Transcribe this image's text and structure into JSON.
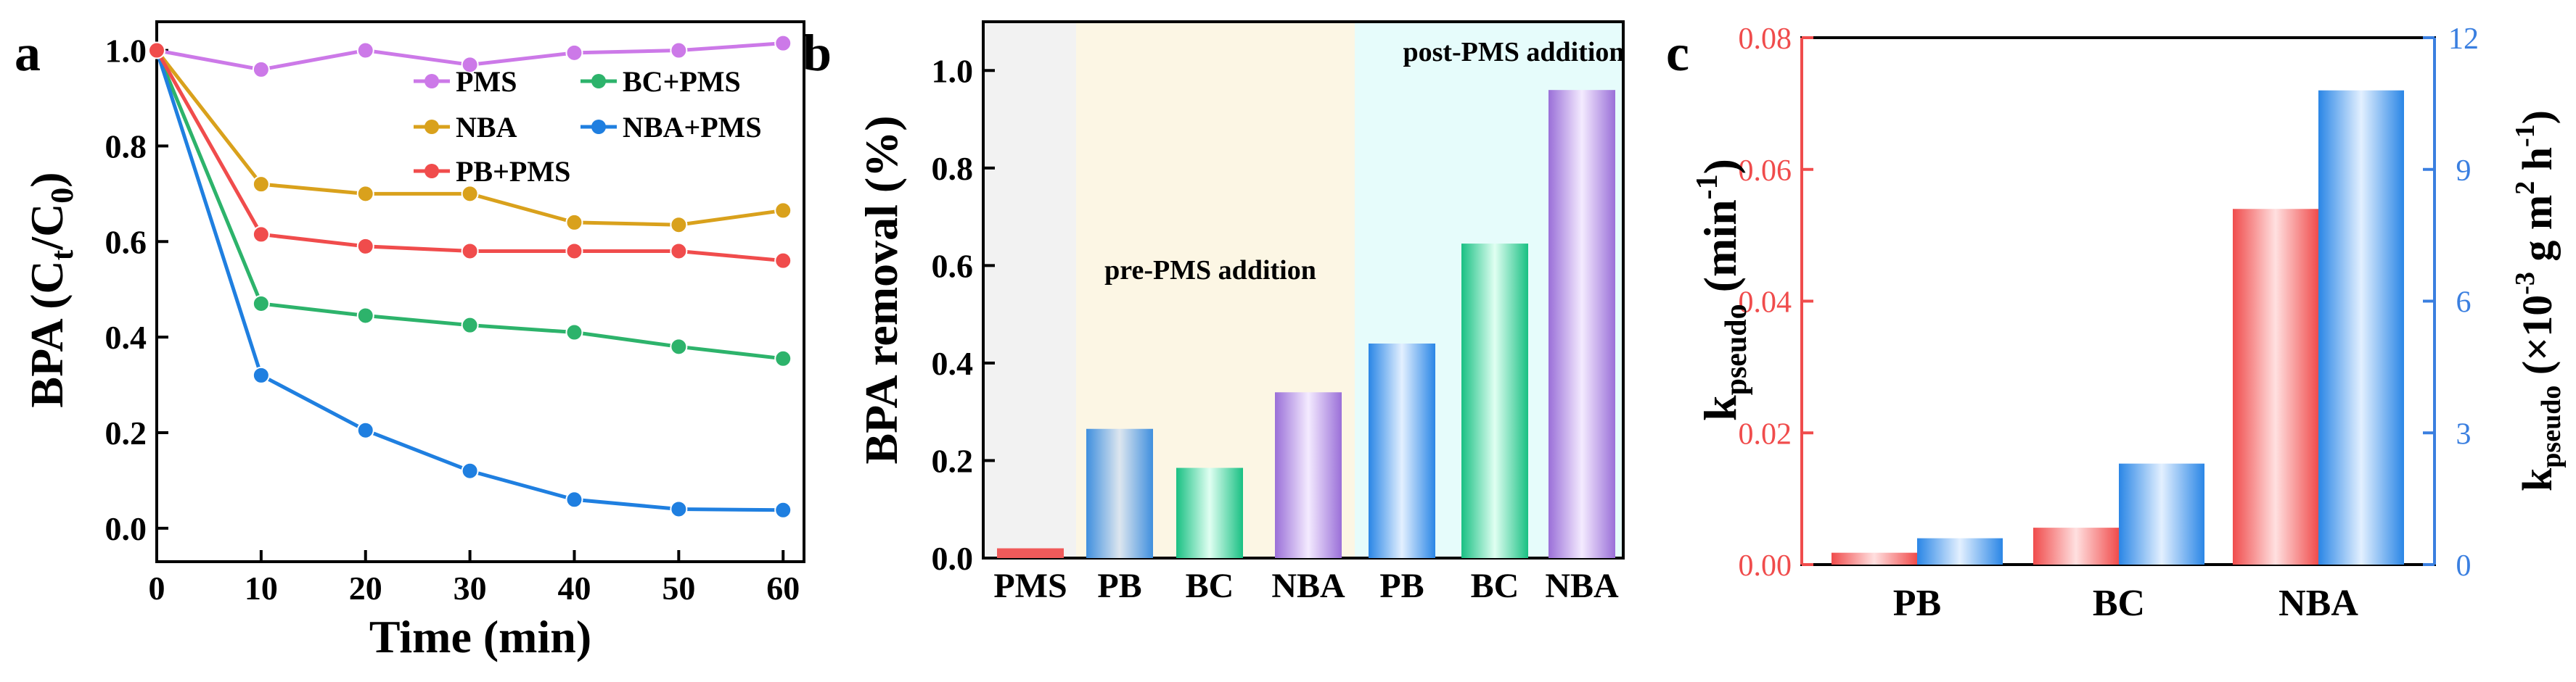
{
  "panels": {
    "a": {
      "letter": "a"
    },
    "b": {
      "letter": "b"
    },
    "c": {
      "letter": "c"
    }
  },
  "chart_data": [
    {
      "type": "line",
      "panel": "a",
      "xlabel": "Time (min)",
      "ylabel": {
        "main": "BPA (C",
        "sub1": "t",
        "mid": "/C",
        "sub2": "0",
        "end": ")"
      },
      "x": [
        0,
        10,
        20,
        30,
        40,
        50,
        60
      ],
      "xticks": [
        0,
        10,
        20,
        30,
        40,
        50,
        60
      ],
      "yticks": [
        0.0,
        0.2,
        0.4,
        0.6,
        0.8,
        1.0
      ],
      "xlim": [
        0,
        62
      ],
      "ylim": [
        -0.07,
        1.06
      ],
      "legend_position": "top-right",
      "series": [
        {
          "name": "PMS",
          "color": "#cc79e8",
          "values": [
            1.0,
            0.96,
            1.0,
            0.97,
            0.995,
            1.0,
            1.015
          ]
        },
        {
          "name": "BC+PMS",
          "color": "#2db36b",
          "values": [
            1.0,
            0.47,
            0.445,
            0.425,
            0.41,
            0.38,
            0.355
          ]
        },
        {
          "name": "NBA",
          "color": "#d9a11c",
          "values": [
            1.0,
            0.72,
            0.7,
            0.7,
            0.64,
            0.635,
            0.665
          ]
        },
        {
          "name": "NBA+PMS",
          "color": "#1f7fe0",
          "values": [
            1.0,
            0.32,
            0.205,
            0.12,
            0.06,
            0.04,
            0.038
          ]
        },
        {
          "name": "PB+PMS",
          "color": "#f04c4c",
          "values": [
            1.0,
            0.615,
            0.59,
            0.58,
            0.58,
            0.58,
            0.56
          ]
        }
      ]
    },
    {
      "type": "bar",
      "panel": "b",
      "ylabel": "BPA removal (%)",
      "categories": [
        "PMS",
        "PB",
        "BC",
        "NBA",
        "PB",
        "BC",
        "NBA"
      ],
      "values": [
        0.02,
        0.265,
        0.185,
        0.34,
        0.44,
        0.645,
        0.96
      ],
      "bar_colors": [
        "#f05a5a",
        "#3f8fde",
        "#2cc081",
        "#a57ad8",
        "#2a8ee8",
        "#1ecf94",
        "#9a72de"
      ],
      "yticks": [
        0.0,
        0.2,
        0.4,
        0.6,
        0.8,
        1.0
      ],
      "ylim": [
        0,
        1.1
      ],
      "region_labels": [
        "pre-PMS addition",
        "post-PMS addition"
      ],
      "region_colors": [
        "#f2f2f2",
        "#fcf6e4",
        "#e6fcfb"
      ]
    },
    {
      "type": "bar",
      "panel": "c",
      "categories": [
        "PB",
        "BC",
        "NBA"
      ],
      "ylabel_left": {
        "main": "k",
        "sub": "pseudo",
        "unit": " (min",
        "sup": "-1",
        "end": ")"
      },
      "ylabel_right": {
        "main": "k",
        "sub": "pseudo",
        "unit": " (×10",
        "sup1": "-3",
        "mid": " g m",
        "sup2": "2",
        "mid2": " h",
        "sup3": "-1",
        "end": ")"
      },
      "left_axis_color": "#f04c4c",
      "right_axis_color": "#3a7fe0",
      "ylim_left": [
        0,
        0.08
      ],
      "yticks_left": [
        "0.00",
        "0.02",
        "0.04",
        "0.06",
        "0.08"
      ],
      "ylim_right": [
        0,
        12
      ],
      "yticks_right": [
        "0",
        "3",
        "6",
        "9",
        "12"
      ],
      "series": [
        {
          "axis": "left",
          "color": "#f05a5a",
          "values": [
            0.0018,
            0.0056,
            0.054
          ]
        },
        {
          "axis": "right",
          "color": "#3a8ee8",
          "values": [
            0.6,
            2.3,
            10.8
          ]
        }
      ]
    }
  ]
}
